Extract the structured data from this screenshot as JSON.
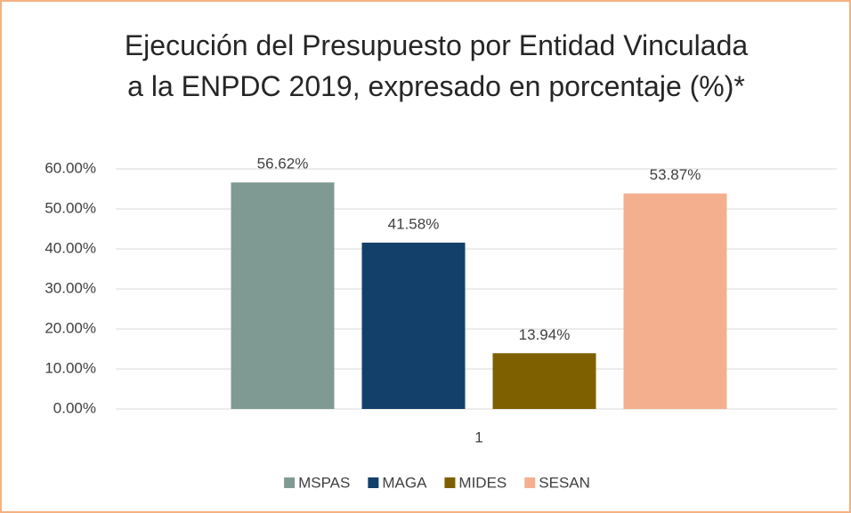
{
  "chart_data": {
    "type": "bar",
    "title": "Ejecución del Presupuesto por Entidad Vinculada a la ENPDC 2019, expresado en porcentaje (%)*",
    "categories": [
      "1"
    ],
    "series": [
      {
        "name": "MSPAS",
        "color": "#7f9a93",
        "values": [
          56.62
        ],
        "value_labels": [
          "56.62%"
        ]
      },
      {
        "name": "MAGA",
        "color": "#12406a",
        "values": [
          41.58
        ],
        "value_labels": [
          "41.58%"
        ]
      },
      {
        "name": "MIDES",
        "color": "#7f6000",
        "values": [
          13.94
        ],
        "value_labels": [
          "13.94%"
        ]
      },
      {
        "name": "SESAN",
        "color": "#f4b08e",
        "values": [
          53.87
        ],
        "value_labels": [
          "53.87%"
        ]
      }
    ],
    "ylim": [
      0,
      60
    ],
    "yticks": [
      {
        "value": 0,
        "label": "0.00%"
      },
      {
        "value": 10,
        "label": "10.00%"
      },
      {
        "value": 20,
        "label": "20.00%"
      },
      {
        "value": 30,
        "label": "30.00%"
      },
      {
        "value": 40,
        "label": "40.00%"
      },
      {
        "value": 50,
        "label": "50.00%"
      },
      {
        "value": 60,
        "label": "60.00%"
      }
    ],
    "grid": true,
    "legend": "bottom"
  }
}
